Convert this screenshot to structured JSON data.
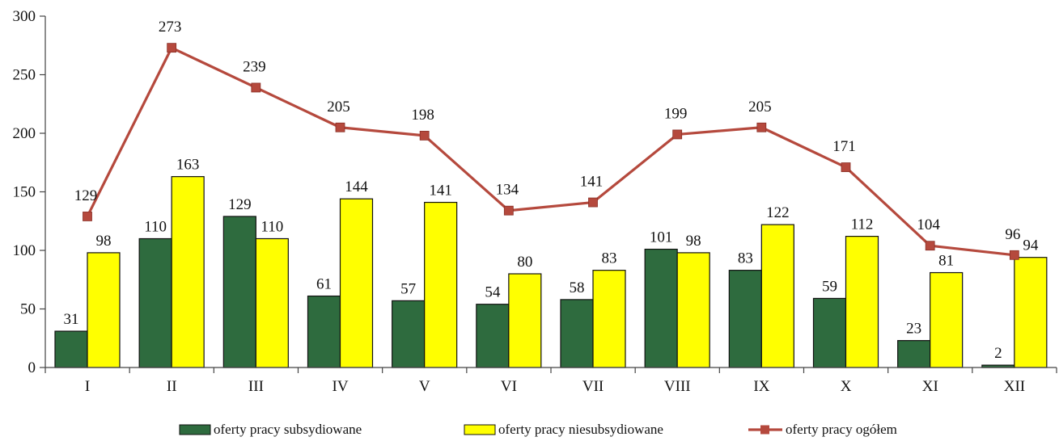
{
  "chart_data": {
    "type": "bar",
    "categories": [
      "I",
      "II",
      "III",
      "IV",
      "V",
      "VI",
      "VII",
      "VIII",
      "IX",
      "X",
      "XI",
      "XII"
    ],
    "series": [
      {
        "name": "oferty pracy subsydiowane",
        "type": "bar",
        "color": "#2e6b3e",
        "values": [
          31,
          110,
          129,
          61,
          57,
          54,
          58,
          101,
          83,
          59,
          23,
          2
        ]
      },
      {
        "name": "oferty pracy niesubsydiowane",
        "type": "bar",
        "color": "#ffff00",
        "values": [
          98,
          163,
          110,
          144,
          141,
          80,
          83,
          98,
          122,
          112,
          81,
          94
        ]
      },
      {
        "name": "oferty pracy ogółem",
        "type": "line",
        "color": "#b5493d",
        "values": [
          129,
          273,
          239,
          205,
          198,
          134,
          141,
          199,
          205,
          171,
          104,
          96
        ]
      }
    ],
    "ylim": [
      0,
      300
    ],
    "yticks": [
      0,
      50,
      100,
      150,
      200,
      250,
      300
    ],
    "grid": false,
    "legend_position": "bottom"
  }
}
